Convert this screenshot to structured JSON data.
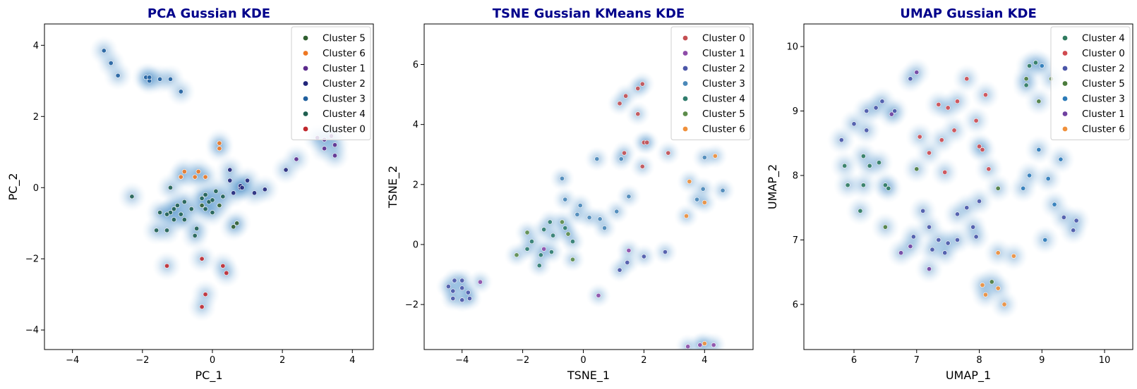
{
  "chart_data": [
    {
      "type": "scatter",
      "title": "PCA Gussian KDE",
      "xlabel": "PC_1",
      "ylabel": "PC_2",
      "xlim": [
        -4.8,
        4.6
      ],
      "ylim": [
        -4.55,
        4.6
      ],
      "xticks": [
        -4,
        -2,
        0,
        2,
        4
      ],
      "yticks": [
        -4,
        -2,
        0,
        2,
        4
      ],
      "xtick_labels": [
        "−4",
        "−2",
        "0",
        "2",
        "4"
      ],
      "ytick_labels": [
        "−4",
        "−2",
        "0",
        "2",
        "4"
      ],
      "legend_placement": "top-right",
      "background": "kde-density",
      "series": [
        {
          "name": "Cluster 5",
          "color": "#2f5e2f",
          "points": [
            [
              -0.3,
              -0.5
            ],
            [
              0.6,
              -1.1
            ],
            [
              0.2,
              -0.5
            ],
            [
              0.7,
              -1.0
            ]
          ]
        },
        {
          "name": "Cluster 6",
          "color": "#ee7722",
          "points": [
            [
              -0.8,
              0.45
            ],
            [
              -0.5,
              0.3
            ],
            [
              -0.9,
              0.3
            ],
            [
              -0.4,
              0.45
            ],
            [
              0.2,
              1.25
            ],
            [
              0.2,
              1.1
            ],
            [
              -0.2,
              0.3
            ]
          ]
        },
        {
          "name": "Cluster 1",
          "color": "#5b2a8c",
          "points": [
            [
              3.0,
              1.4
            ],
            [
              3.2,
              1.1
            ],
            [
              3.5,
              0.9
            ],
            [
              3.2,
              1.35
            ],
            [
              3.5,
              1.2
            ],
            [
              3.4,
              1.45
            ],
            [
              2.4,
              0.8
            ]
          ]
        },
        {
          "name": "Cluster 2",
          "color": "#22267a",
          "points": [
            [
              0.5,
              0.2
            ],
            [
              0.8,
              0.0
            ],
            [
              0.6,
              -0.15
            ],
            [
              1.0,
              0.2
            ],
            [
              0.8,
              0.05
            ],
            [
              1.2,
              -0.15
            ],
            [
              1.5,
              -0.05
            ],
            [
              2.1,
              0.5
            ],
            [
              0.5,
              0.5
            ],
            [
              0.85,
              0.0
            ]
          ]
        },
        {
          "name": "Cluster 3",
          "color": "#1f5f9e",
          "points": [
            [
              -3.1,
              3.85
            ],
            [
              -2.9,
              3.5
            ],
            [
              -2.7,
              3.15
            ],
            [
              -1.9,
              3.1
            ],
            [
              -1.8,
              3.0
            ],
            [
              -1.5,
              3.05
            ],
            [
              -1.2,
              3.05
            ],
            [
              -0.9,
              2.7
            ],
            [
              -1.8,
              3.1
            ]
          ]
        },
        {
          "name": "Cluster 4",
          "color": "#1f5f4f",
          "points": [
            [
              -1.2,
              -0.7
            ],
            [
              -1.1,
              -0.9
            ],
            [
              -1.0,
              -0.5
            ],
            [
              -0.9,
              -0.75
            ],
            [
              -0.8,
              -0.4
            ],
            [
              -1.3,
              -0.75
            ],
            [
              -1.1,
              -0.6
            ],
            [
              -0.8,
              -0.9
            ],
            [
              -1.5,
              -0.7
            ],
            [
              -1.2,
              0.0
            ],
            [
              -0.6,
              -0.6
            ],
            [
              -0.3,
              -0.3
            ],
            [
              -0.1,
              -0.4
            ],
            [
              0.0,
              -0.35
            ],
            [
              0.1,
              -0.1
            ],
            [
              0.3,
              -0.25
            ],
            [
              -0.2,
              -0.2
            ],
            [
              -2.3,
              -0.25
            ],
            [
              -1.3,
              -1.2
            ],
            [
              -1.6,
              -1.2
            ],
            [
              -0.5,
              -1.35
            ],
            [
              -0.45,
              -1.15
            ],
            [
              -0.2,
              -0.6
            ],
            [
              0.0,
              -0.7
            ]
          ]
        },
        {
          "name": "Cluster 0",
          "color": "#c0282d",
          "points": [
            [
              -0.3,
              -2.0
            ],
            [
              0.3,
              -2.2
            ],
            [
              0.4,
              -2.4
            ],
            [
              -0.2,
              -3.0
            ],
            [
              -0.3,
              -3.35
            ],
            [
              -1.3,
              -2.2
            ]
          ]
        }
      ]
    },
    {
      "type": "scatter",
      "title": "TSNE Gussian KMeans KDE",
      "xlabel": "TSNE_1",
      "ylabel": "TSNE_2",
      "xlim": [
        -5.25,
        5.6
      ],
      "ylim": [
        -3.5,
        7.35
      ],
      "xticks": [
        -4,
        -2,
        0,
        2,
        4
      ],
      "yticks": [
        -2,
        0,
        2,
        4,
        6
      ],
      "xtick_labels": [
        "−4",
        "−2",
        "0",
        "2",
        "4"
      ],
      "ytick_labels": [
        "−2",
        "0",
        "2",
        "4",
        "6"
      ],
      "legend_placement": "top-right",
      "background": "kde-density",
      "series": [
        {
          "name": "Cluster 0",
          "color": "#c44e52",
          "points": [
            [
              1.2,
              4.7
            ],
            [
              1.4,
              4.95
            ],
            [
              1.8,
              5.2
            ],
            [
              1.95,
              5.35
            ],
            [
              1.8,
              4.35
            ],
            [
              2.0,
              3.4
            ],
            [
              2.1,
              3.4
            ],
            [
              1.95,
              2.6
            ],
            [
              2.8,
              3.05
            ],
            [
              1.35,
              3.05
            ]
          ]
        },
        {
          "name": "Cluster 1",
          "color": "#8e4ba8",
          "points": [
            [
              3.45,
              -3.4
            ],
            [
              3.85,
              -3.35
            ],
            [
              4.3,
              -3.35
            ],
            [
              -1.3,
              -0.15
            ],
            [
              1.5,
              -0.2
            ],
            [
              0.5,
              -1.7
            ],
            [
              -3.4,
              -1.25
            ]
          ]
        },
        {
          "name": "Cluster 2",
          "color": "#4c56a8",
          "points": [
            [
              -4.25,
              -1.2
            ],
            [
              -4.0,
              -1.2
            ],
            [
              -4.45,
              -1.4
            ],
            [
              -4.3,
              -1.55
            ],
            [
              -4.0,
              -1.45
            ],
            [
              -4.3,
              -1.8
            ],
            [
              -4.0,
              -1.85
            ],
            [
              -3.75,
              -1.8
            ],
            [
              -3.8,
              -1.6
            ],
            [
              1.45,
              -0.6
            ],
            [
              2.0,
              -0.4
            ],
            [
              2.7,
              -0.25
            ],
            [
              1.2,
              -0.85
            ]
          ]
        },
        {
          "name": "Cluster 3",
          "color": "#4a88b8",
          "points": [
            [
              0.45,
              2.85
            ],
            [
              -0.7,
              2.2
            ],
            [
              -0.6,
              1.5
            ],
            [
              -0.1,
              1.3
            ],
            [
              -0.2,
              1.0
            ],
            [
              0.2,
              0.9
            ],
            [
              0.55,
              0.85
            ],
            [
              0.7,
              0.55
            ],
            [
              1.1,
              1.1
            ],
            [
              1.5,
              1.6
            ],
            [
              1.25,
              2.85
            ],
            [
              4.6,
              1.8
            ],
            [
              3.95,
              1.85
            ],
            [
              3.75,
              1.5
            ],
            [
              4.0,
              2.9
            ]
          ]
        },
        {
          "name": "Cluster 4",
          "color": "#2f7c6c",
          "points": [
            [
              -1.7,
              0.1
            ],
            [
              -1.3,
              0.5
            ],
            [
              -1.1,
              0.75
            ],
            [
              -1.0,
              0.3
            ],
            [
              -1.05,
              -0.25
            ],
            [
              -1.4,
              -0.35
            ],
            [
              -1.45,
              -0.7
            ],
            [
              -0.6,
              0.55
            ],
            [
              -0.35,
              0.1
            ],
            [
              -1.85,
              -0.15
            ]
          ]
        },
        {
          "name": "Cluster 5",
          "color": "#5c8c4a",
          "points": [
            [
              -1.85,
              0.4
            ],
            [
              -2.2,
              -0.35
            ],
            [
              -0.7,
              0.75
            ],
            [
              -0.35,
              -0.5
            ],
            [
              -0.5,
              0.35
            ]
          ]
        },
        {
          "name": "Cluster 6",
          "color": "#f0903a",
          "points": [
            [
              3.4,
              0.95
            ],
            [
              4.0,
              1.4
            ],
            [
              3.5,
              2.1
            ],
            [
              4.35,
              2.95
            ],
            [
              4.0,
              -3.3
            ]
          ]
        }
      ]
    },
    {
      "type": "scatter",
      "title": "UMAP Gussian KDE",
      "xlabel": "UMAP_1",
      "ylabel": "UMAP_2",
      "xlim": [
        5.2,
        10.45
      ],
      "ylim": [
        5.3,
        10.35
      ],
      "xticks": [
        6,
        7,
        8,
        9,
        10
      ],
      "yticks": [
        6,
        7,
        8,
        9,
        10
      ],
      "xtick_labels": [
        "6",
        "7",
        "8",
        "9",
        "10"
      ],
      "ytick_labels": [
        "6",
        "7",
        "8",
        "9",
        "10"
      ],
      "legend_placement": "top-right",
      "background": "kde-density",
      "series": [
        {
          "name": "Cluster 4",
          "color": "#2e7a5e",
          "points": [
            [
              6.15,
              8.3
            ],
            [
              6.25,
              8.15
            ],
            [
              6.4,
              8.2
            ],
            [
              6.15,
              7.85
            ],
            [
              6.5,
              7.85
            ],
            [
              6.55,
              7.8
            ],
            [
              5.9,
              7.85
            ],
            [
              5.85,
              8.15
            ],
            [
              6.1,
              7.45
            ],
            [
              8.8,
              9.7
            ],
            [
              8.9,
              9.75
            ],
            [
              8.75,
              9.4
            ]
          ]
        },
        {
          "name": "Cluster 0",
          "color": "#d04a4f",
          "points": [
            [
              7.35,
              9.1
            ],
            [
              7.5,
              9.05
            ],
            [
              7.65,
              9.15
            ],
            [
              7.8,
              9.5
            ],
            [
              7.6,
              8.7
            ],
            [
              7.4,
              8.55
            ],
            [
              8.0,
              8.45
            ],
            [
              8.05,
              8.4
            ],
            [
              7.2,
              8.35
            ],
            [
              7.05,
              8.6
            ],
            [
              8.1,
              9.25
            ],
            [
              7.95,
              8.85
            ],
            [
              7.45,
              8.05
            ],
            [
              8.15,
              8.1
            ]
          ]
        },
        {
          "name": "Cluster 2",
          "color": "#4a55a8",
          "points": [
            [
              6.0,
              8.8
            ],
            [
              6.2,
              9.0
            ],
            [
              6.35,
              9.05
            ],
            [
              6.45,
              9.15
            ],
            [
              6.65,
              9.0
            ],
            [
              6.9,
              9.5
            ],
            [
              5.8,
              8.55
            ],
            [
              6.2,
              8.7
            ],
            [
              6.95,
              7.05
            ],
            [
              7.2,
              7.2
            ],
            [
              7.1,
              7.45
            ],
            [
              7.35,
              7.0
            ],
            [
              7.5,
              6.95
            ],
            [
              7.65,
              7.4
            ],
            [
              7.8,
              7.5
            ],
            [
              7.9,
              7.2
            ],
            [
              7.25,
              6.85
            ],
            [
              7.45,
              6.8
            ],
            [
              7.65,
              7.0
            ],
            [
              7.95,
              7.05
            ],
            [
              8.0,
              7.6
            ],
            [
              9.35,
              7.35
            ],
            [
              9.55,
              7.3
            ],
            [
              9.5,
              7.15
            ]
          ]
        },
        {
          "name": "Cluster 5",
          "color": "#4c7c3c",
          "points": [
            [
              6.5,
              7.2
            ],
            [
              8.75,
              9.5
            ],
            [
              8.95,
              9.15
            ],
            [
              9.15,
              9.5
            ],
            [
              8.3,
              7.8
            ],
            [
              8.2,
              6.35
            ],
            [
              7.0,
              8.1
            ]
          ]
        },
        {
          "name": "Cluster 3",
          "color": "#2b7ab8",
          "points": [
            [
              8.7,
              7.8
            ],
            [
              8.95,
              8.4
            ],
            [
              9.1,
              7.95
            ],
            [
              9.3,
              8.25
            ],
            [
              9.2,
              7.55
            ],
            [
              9.05,
              7.0
            ],
            [
              8.8,
              8.0
            ],
            [
              9.0,
              9.7
            ]
          ]
        },
        {
          "name": "Cluster 1",
          "color": "#7040a0",
          "points": [
            [
              6.6,
              8.95
            ],
            [
              7.0,
              9.6
            ],
            [
              6.75,
              6.8
            ],
            [
              7.2,
              6.55
            ],
            [
              6.9,
              6.9
            ]
          ]
        },
        {
          "name": "Cluster 6",
          "color": "#f0903a",
          "points": [
            [
              8.3,
              6.8
            ],
            [
              8.3,
              6.25
            ],
            [
              8.05,
              6.3
            ],
            [
              8.1,
              6.15
            ],
            [
              8.4,
              6.0
            ],
            [
              8.55,
              6.75
            ]
          ]
        }
      ]
    }
  ]
}
